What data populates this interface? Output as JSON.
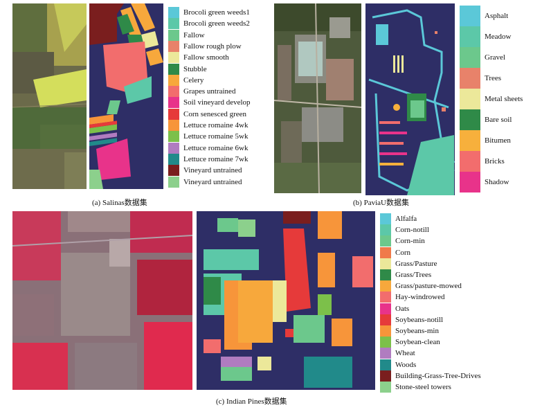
{
  "captions": {
    "a": "(a) Salinas数据集",
    "b": "(b) PaviaU数据集",
    "c": "(c) Indian Pines数据集"
  },
  "salinas_legend": [
    {
      "label": "Brocoli green weeds1",
      "color": "#5bc8d8"
    },
    {
      "label": "Brocoli green weeds2",
      "color": "#5cc8a8"
    },
    {
      "label": "Fallow",
      "color": "#6cc88c"
    },
    {
      "label": "Fallow rough plow",
      "color": "#e8826a"
    },
    {
      "label": "Fallow smooth",
      "color": "#ece89a"
    },
    {
      "label": "Stubble",
      "color": "#2f8a48"
    },
    {
      "label": "Celery",
      "color": "#f7a83c"
    },
    {
      "label": "Grapes untrained",
      "color": "#f26d6d"
    },
    {
      "label": "Soil vineyard develop",
      "color": "#e8338a"
    },
    {
      "label": "Corn senesced green",
      "color": "#e63a3a"
    },
    {
      "label": "Lettuce romaine 4wk",
      "color": "#f7953a"
    },
    {
      "label": "Lettuce romaine 5wk",
      "color": "#7cc04a"
    },
    {
      "label": "Lettuce romaine 6wk",
      "color": "#b07cc0"
    },
    {
      "label": "Lettuce romaine 7wk",
      "color": "#218a8a"
    },
    {
      "label": "Vineyard untrained",
      "color": "#7a1e1e"
    },
    {
      "label": "Vineyard untrained",
      "color": "#8cd08c"
    }
  ],
  "pavia_legend": [
    {
      "label": "Asphalt",
      "color": "#5bc8d8"
    },
    {
      "label": "Meadow",
      "color": "#5cc8a8"
    },
    {
      "label": "Gravel",
      "color": "#6cc88c"
    },
    {
      "label": "Trees",
      "color": "#e8826a"
    },
    {
      "label": "Metal sheets",
      "color": "#ece89a"
    },
    {
      "label": "Bare soil",
      "color": "#2f8a48"
    },
    {
      "label": "Bitumen",
      "color": "#f7b03c"
    },
    {
      "label": "Bricks",
      "color": "#f26d6d"
    },
    {
      "label": "Shadow",
      "color": "#e8338a"
    }
  ],
  "indian_legend": [
    {
      "label": "Alfalfa",
      "color": "#5bc8d8"
    },
    {
      "label": "Corn-notill",
      "color": "#5cc8a8"
    },
    {
      "label": "Corn-min",
      "color": "#6cc88c"
    },
    {
      "label": "Corn",
      "color": "#f07a4a"
    },
    {
      "label": "Grass/Pasture",
      "color": "#ece89a"
    },
    {
      "label": "Grass/Trees",
      "color": "#2f8a48"
    },
    {
      "label": "Grass/pasture-mowed",
      "color": "#f7a83c"
    },
    {
      "label": "Hay-windrowed",
      "color": "#f26d6d"
    },
    {
      "label": "Oats",
      "color": "#e8338a"
    },
    {
      "label": "Soybeans-notill",
      "color": "#e63a3a"
    },
    {
      "label": "Soybeans-min",
      "color": "#f7953a"
    },
    {
      "label": "Soybean-clean",
      "color": "#7cc04a"
    },
    {
      "label": "Wheat",
      "color": "#b07cc0"
    },
    {
      "label": "Woods",
      "color": "#218a8a"
    },
    {
      "label": "Building-Grass-Tree-Drives",
      "color": "#7a1e1e"
    },
    {
      "label": "Stone-steel towers",
      "color": "#8cd08c"
    }
  ],
  "colors": {
    "map_background": "#2e2e66"
  }
}
